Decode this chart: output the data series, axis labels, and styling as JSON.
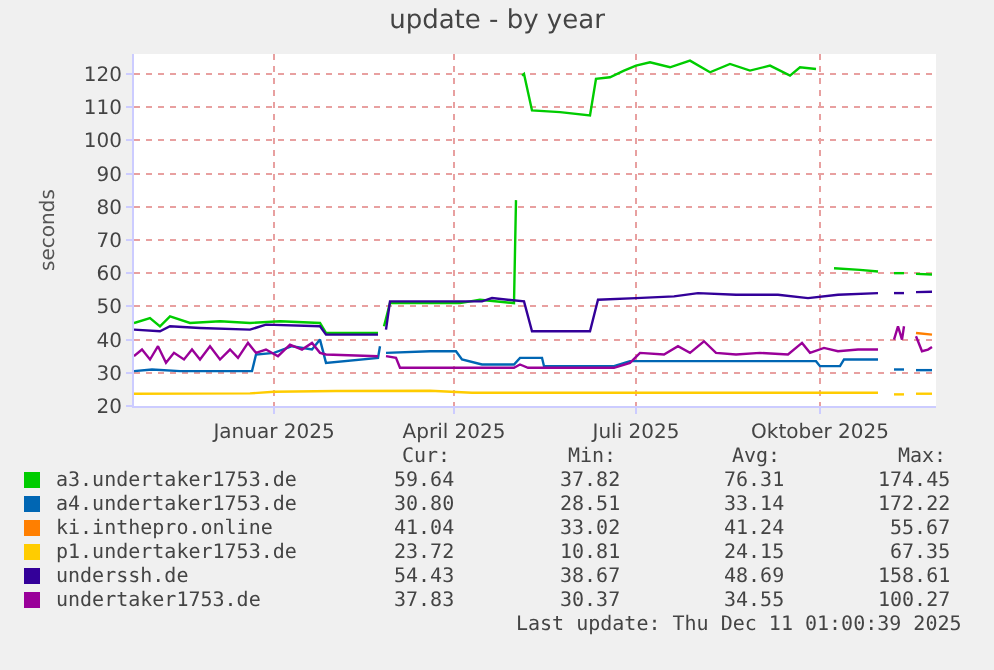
{
  "chart_data": {
    "type": "line",
    "title": "update - by year",
    "ylabel": "seconds",
    "xlim": [
      "2024-10-23",
      "2025-11-28"
    ],
    "xticks": [
      {
        "value": "2025-01-01",
        "label": "Januar 2025"
      },
      {
        "value": "2025-04-01",
        "label": "April 2025"
      },
      {
        "value": "2025-07-01",
        "label": "Juli 2025"
      },
      {
        "value": "2025-10-01",
        "label": "Oktober 2025"
      }
    ],
    "ylim": [
      20,
      126
    ],
    "yticks": [
      20,
      30,
      40,
      50,
      60,
      70,
      80,
      90,
      100,
      110,
      120
    ],
    "grid": true,
    "legend": "bottom",
    "marker": "none",
    "line_style": "solid",
    "annotations": [
      "Cur:",
      "Min:",
      "Avg:",
      "Max:",
      "59.64",
      "37.82",
      "76.31",
      "174.45",
      "30.80",
      "28.51",
      "33.14",
      "172.22",
      "41.04",
      "33.02",
      "41.24",
      "55.67",
      "23.72",
      "10.81",
      "24.15",
      "67.35",
      "54.43",
      "38.67",
      "48.69",
      "158.61",
      "37.83",
      "30.37",
      "34.55",
      "100.27",
      "Last update: Thu Dec 11 01:00:39 2025"
    ],
    "series": [
      {
        "name": "a3.undertaker1753.de",
        "color": "#00cc00",
        "x": [
          "2024-10-23",
          "2024-10-31",
          "2024-11-05",
          "2024-11-10",
          "2024-11-20",
          "2024-12-05",
          "2024-12-20",
          "2025-01-04",
          "2025-01-24",
          "2025-01-27",
          "2025-02-22",
          "2025-02-24",
          "2025-02-25",
          "2025-02-28",
          "2025-04-04",
          "2025-04-14",
          "2025-05-01",
          "2025-05-02",
          "2025-05-04",
          "2025-05-05",
          "2025-05-06",
          "2025-05-10",
          "2025-05-24",
          "2025-06-08",
          "2025-06-11",
          "2025-06-18",
          "2025-06-25",
          "2025-07-01",
          "2025-07-08",
          "2025-07-18",
          "2025-07-28",
          "2025-08-07",
          "2025-08-17",
          "2025-08-27",
          "2025-09-06",
          "2025-09-16",
          "2025-09-21",
          "2025-09-29",
          "2025-10-03",
          "2025-10-08",
          "2025-10-21",
          "2025-10-30",
          "2025-11-03",
          "2025-11-07",
          "2025-11-12",
          "2025-11-15",
          "2025-11-18",
          "2025-11-26"
        ],
        "values": [
          45,
          46.5,
          44,
          47,
          45,
          45.5,
          45,
          45.5,
          45,
          42,
          42,
          null,
          44,
          51,
          51,
          52,
          51,
          82,
          null,
          119.5,
          120,
          109,
          108.5,
          107.5,
          118.5,
          119,
          121,
          122.5,
          123.5,
          122,
          124,
          120.5,
          123,
          121,
          122.5,
          119.5,
          122,
          121.5,
          null,
          61.5,
          61,
          60.5,
          null,
          60,
          60,
          null,
          59.8,
          59.6
        ]
      },
      {
        "name": "a4.undertaker1753.de",
        "color": "#0066b3",
        "x": [
          "2024-10-23",
          "2024-11-01",
          "2024-11-15",
          "2024-12-10",
          "2024-12-21",
          "2024-12-23",
          "2025-01-01",
          "2025-01-10",
          "2025-01-20",
          "2025-01-24",
          "2025-01-27",
          "2025-02-22",
          "2025-02-23",
          "2025-02-25",
          "2025-02-26",
          "2025-03-20",
          "2025-04-02",
          "2025-04-05",
          "2025-04-15",
          "2025-05-01",
          "2025-05-04",
          "2025-05-15",
          "2025-05-16",
          "2025-06-20",
          "2025-06-28",
          "2025-09-29",
          "2025-10-01",
          "2025-10-11",
          "2025-10-13",
          "2025-10-30",
          "2025-11-03",
          "2025-11-07",
          "2025-11-12",
          "2025-11-15",
          "2025-11-18",
          "2025-11-26"
        ],
        "values": [
          30.5,
          31,
          30.5,
          30.5,
          30.5,
          35.5,
          36,
          38,
          37,
          40,
          33,
          34.5,
          38,
          null,
          36,
          36.5,
          36.5,
          34,
          32.5,
          32.5,
          34.5,
          34.5,
          32,
          32,
          33.5,
          33.5,
          32,
          32,
          34,
          34,
          null,
          31,
          31,
          null,
          30.8,
          30.8
        ]
      },
      {
        "name": "ki.inthepro.online",
        "color": "#ff7f00",
        "x": [
          "2025-11-18",
          "2025-11-26"
        ],
        "values": [
          42,
          41.5
        ]
      },
      {
        "name": "p1.undertaker1753.de",
        "color": "#ffcc00",
        "x": [
          "2024-10-23",
          "2024-12-20",
          "2025-01-01",
          "2025-02-01",
          "2025-03-20",
          "2025-04-10",
          "2025-06-01",
          "2025-10-30",
          "2025-11-03",
          "2025-11-07",
          "2025-11-12",
          "2025-11-15",
          "2025-11-18",
          "2025-11-26"
        ],
        "values": [
          23.7,
          23.8,
          24.3,
          24.5,
          24.6,
          24,
          24,
          24,
          null,
          23.5,
          23.5,
          null,
          23.7,
          23.7
        ]
      },
      {
        "name": "underssh.de",
        "color": "#330099",
        "x": [
          "2024-10-23",
          "2024-11-05",
          "2024-11-10",
          "2024-11-25",
          "2024-12-20",
          "2024-12-28",
          "2025-01-24",
          "2025-01-27",
          "2025-02-22",
          "2025-02-24",
          "2025-02-26",
          "2025-02-28",
          "2025-04-15",
          "2025-04-20",
          "2025-05-06",
          "2025-05-10",
          "2025-06-08",
          "2025-06-12",
          "2025-07-01",
          "2025-07-20",
          "2025-08-01",
          "2025-08-20",
          "2025-09-10",
          "2025-09-25",
          "2025-10-10",
          "2025-10-30",
          "2025-11-03",
          "2025-11-07",
          "2025-11-12",
          "2025-11-15",
          "2025-11-18",
          "2025-11-26"
        ],
        "values": [
          43,
          42.5,
          44,
          43.5,
          43,
          44.5,
          44,
          41.5,
          41.5,
          null,
          43,
          51.5,
          51.5,
          52.5,
          51.5,
          42.5,
          42.5,
          52,
          52.5,
          53,
          54,
          53.5,
          53.5,
          52.5,
          53.5,
          54,
          null,
          54,
          54,
          null,
          54.3,
          54.4
        ]
      },
      {
        "name": "undertaker1753.de",
        "color": "#990099",
        "x": [
          "2024-10-23",
          "2024-10-27",
          "2024-10-31",
          "2024-11-04",
          "2024-11-08",
          "2024-11-12",
          "2024-11-17",
          "2024-11-21",
          "2024-11-25",
          "2024-11-30",
          "2024-12-05",
          "2024-12-10",
          "2024-12-14",
          "2024-12-19",
          "2024-12-23",
          "2024-12-28",
          "2025-01-03",
          "2025-01-09",
          "2025-01-15",
          "2025-01-20",
          "2025-01-24",
          "2025-01-27",
          "2025-02-22",
          "2025-02-25",
          "2025-02-26",
          "2025-03-03",
          "2025-03-05",
          "2025-05-01",
          "2025-05-04",
          "2025-05-08",
          "2025-06-20",
          "2025-06-28",
          "2025-07-03",
          "2025-07-15",
          "2025-07-22",
          "2025-07-28",
          "2025-08-04",
          "2025-08-10",
          "2025-08-20",
          "2025-09-01",
          "2025-09-15",
          "2025-09-22",
          "2025-09-26",
          "2025-10-03",
          "2025-10-10",
          "2025-10-20",
          "2025-10-30",
          "2025-11-03",
          "2025-11-07",
          "2025-11-09",
          "2025-11-11",
          "2025-11-12",
          "2025-11-15",
          "2025-11-18",
          "2025-11-21",
          "2025-11-24",
          "2025-11-26"
        ],
        "values": [
          35,
          37,
          34,
          38,
          33,
          36,
          34,
          37,
          34,
          38,
          34,
          37,
          34.5,
          39,
          36,
          37,
          35,
          38.5,
          37,
          39,
          36,
          35.5,
          35,
          null,
          35,
          34.5,
          31.5,
          31.5,
          32.5,
          31.5,
          31.5,
          33,
          36,
          35.5,
          38,
          36,
          39.5,
          36,
          35.5,
          36,
          35.5,
          39,
          36,
          37.5,
          36.5,
          37,
          37,
          null,
          40,
          44,
          40,
          44,
          null,
          41,
          36.5,
          37,
          37.8
        ]
      }
    ]
  }
}
